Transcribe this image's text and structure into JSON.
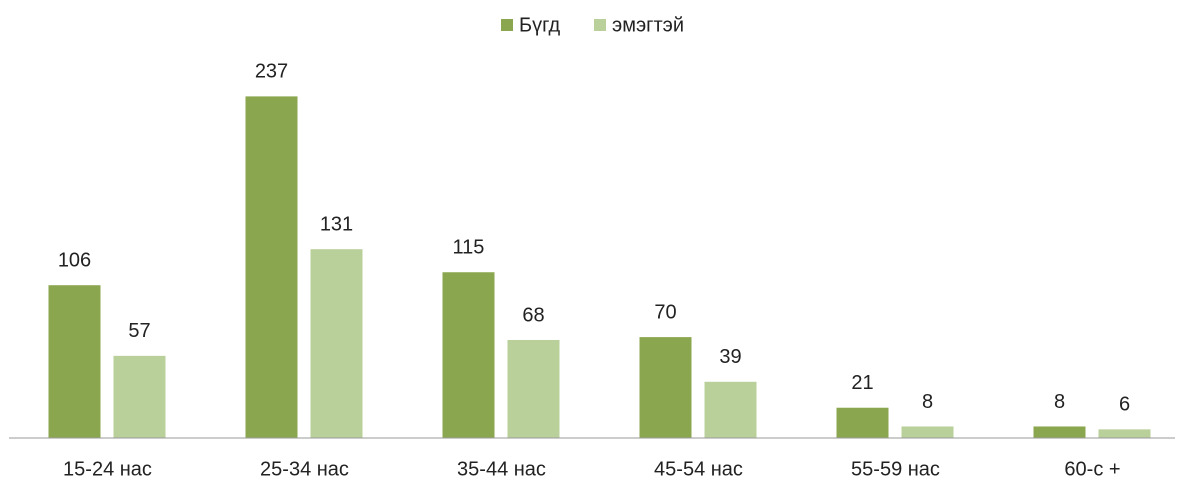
{
  "chart_data": {
    "type": "bar",
    "categories": [
      "15-24 нас",
      "25-34 нас",
      "35-44 нас",
      "45-54 нас",
      "55-59 нас",
      "60-с +"
    ],
    "series": [
      {
        "name": "Бүгд",
        "color": "#8aa64e",
        "values": [
          106,
          237,
          115,
          70,
          21,
          8
        ]
      },
      {
        "name": "эмэгтэй",
        "color": "#b9d09a",
        "values": [
          57,
          131,
          68,
          39,
          8,
          6
        ]
      }
    ],
    "ylim": [
      0,
      290
    ],
    "legend": "top"
  }
}
